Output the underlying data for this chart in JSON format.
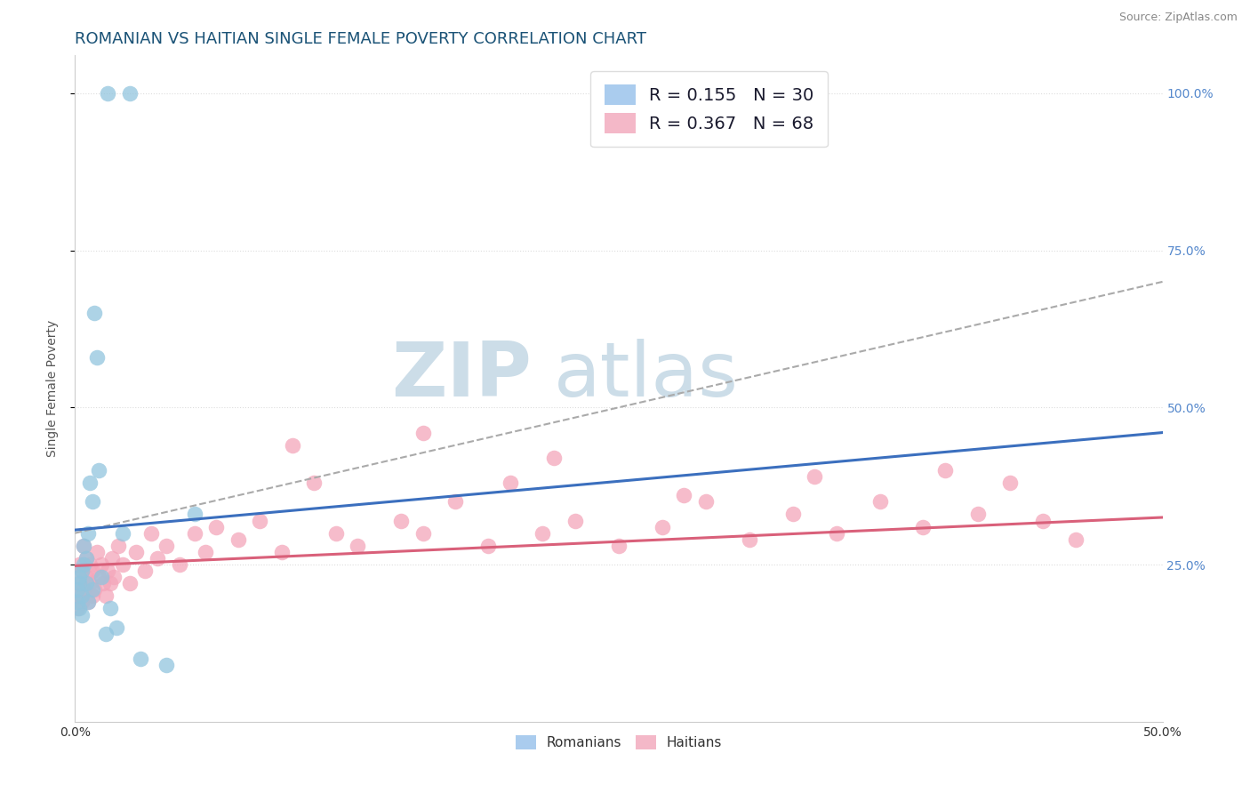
{
  "title": "ROMANIAN VS HAITIAN SINGLE FEMALE POVERTY CORRELATION CHART",
  "source": "Source: ZipAtlas.com",
  "ylabel": "Single Female Poverty",
  "xlim": [
    0.0,
    0.5
  ],
  "ylim": [
    0.0,
    1.0
  ],
  "xtick_positions": [
    0.0,
    0.5
  ],
  "xticklabels": [
    "0.0%",
    "50.0%"
  ],
  "ytick_positions": [
    0.25,
    0.5,
    0.75,
    1.0
  ],
  "yticklabels_right": [
    "25.0%",
    "50.0%",
    "75.0%",
    "100.0%"
  ],
  "romanian_scatter_color": "#92c5de",
  "haitian_scatter_color": "#f4a6ba",
  "romanian_line_color": "#3b6fbe",
  "haitian_line_color": "#d9607a",
  "dash_line_color": "#aaaaaa",
  "R_romanian": 0.155,
  "N_romanian": 30,
  "R_haitian": 0.367,
  "N_haitian": 68,
  "watermark_ZIP": "ZIP",
  "watermark_atlas": "atlas",
  "watermark_color": "#ccdde8",
  "background_color": "#ffffff",
  "grid_color": "#dddddd",
  "title_color": "#1a5276",
  "ylabel_color": "#555555",
  "source_color": "#888888",
  "tick_color_blue": "#5588cc",
  "title_fontsize": 13,
  "source_fontsize": 9,
  "axis_label_fontsize": 10,
  "tick_fontsize": 10,
  "legend_fontsize": 14,
  "rom_x": [
    0.001,
    0.001,
    0.002,
    0.002,
    0.002,
    0.003,
    0.003,
    0.003,
    0.004,
    0.004,
    0.005,
    0.005,
    0.006,
    0.006,
    0.007,
    0.008,
    0.008,
    0.009,
    0.01,
    0.011,
    0.012,
    0.014,
    0.016,
    0.019,
    0.022,
    0.03,
    0.042,
    0.055,
    0.015,
    0.025
  ],
  "rom_y": [
    0.19,
    0.21,
    0.22,
    0.18,
    0.23,
    0.2,
    0.24,
    0.17,
    0.28,
    0.25,
    0.26,
    0.22,
    0.3,
    0.19,
    0.38,
    0.35,
    0.21,
    0.65,
    0.58,
    0.4,
    0.23,
    0.14,
    0.18,
    0.15,
    0.3,
    0.1,
    0.09,
    0.33,
    1.0,
    1.0
  ],
  "hai_x": [
    0.001,
    0.001,
    0.002,
    0.002,
    0.003,
    0.003,
    0.004,
    0.004,
    0.005,
    0.005,
    0.006,
    0.007,
    0.007,
    0.008,
    0.008,
    0.009,
    0.01,
    0.011,
    0.012,
    0.013,
    0.014,
    0.015,
    0.016,
    0.017,
    0.018,
    0.02,
    0.022,
    0.025,
    0.028,
    0.032,
    0.035,
    0.038,
    0.042,
    0.048,
    0.055,
    0.06,
    0.065,
    0.075,
    0.085,
    0.095,
    0.1,
    0.11,
    0.12,
    0.13,
    0.15,
    0.16,
    0.175,
    0.19,
    0.2,
    0.215,
    0.23,
    0.25,
    0.27,
    0.29,
    0.31,
    0.33,
    0.35,
    0.37,
    0.39,
    0.4,
    0.415,
    0.43,
    0.445,
    0.46,
    0.16,
    0.22,
    0.28,
    0.34
  ],
  "hai_y": [
    0.22,
    0.18,
    0.25,
    0.2,
    0.24,
    0.19,
    0.28,
    0.21,
    0.23,
    0.26,
    0.19,
    0.22,
    0.25,
    0.2,
    0.24,
    0.21,
    0.27,
    0.23,
    0.25,
    0.22,
    0.2,
    0.24,
    0.22,
    0.26,
    0.23,
    0.28,
    0.25,
    0.22,
    0.27,
    0.24,
    0.3,
    0.26,
    0.28,
    0.25,
    0.3,
    0.27,
    0.31,
    0.29,
    0.32,
    0.27,
    0.44,
    0.38,
    0.3,
    0.28,
    0.32,
    0.3,
    0.35,
    0.28,
    0.38,
    0.3,
    0.32,
    0.28,
    0.31,
    0.35,
    0.29,
    0.33,
    0.3,
    0.35,
    0.31,
    0.4,
    0.33,
    0.38,
    0.32,
    0.29,
    0.46,
    0.42,
    0.36,
    0.39
  ],
  "rom_line": [
    0.305,
    0.46
  ],
  "hai_line": [
    0.248,
    0.325
  ],
  "dash_line": [
    0.3,
    0.7
  ]
}
